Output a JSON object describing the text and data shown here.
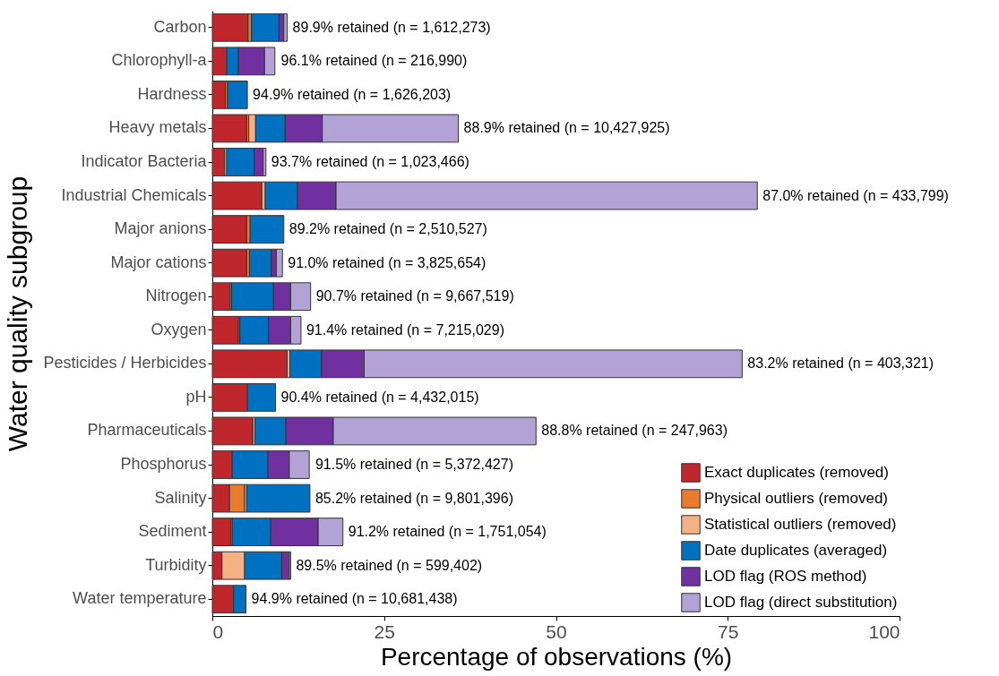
{
  "chart_data": {
    "type": "bar",
    "orientation": "horizontal",
    "stacked": true,
    "ylabel": "Water quality subgroup",
    "xlabel": "Percentage of observations (%)",
    "categories": [
      "Carbon",
      "Chlorophyll-a",
      "Hardness",
      "Heavy metals",
      "Indicator Bacteria",
      "Industrial Chemicals",
      "Major anions",
      "Major cations",
      "Nitrogen",
      "Oxygen",
      "Pesticides / Herbicides",
      "pH",
      "Pharmaceuticals",
      "Phosphorus",
      "Salinity",
      "Sediment",
      "Turbidity",
      "Water temperature"
    ],
    "series": [
      {
        "name": "Exact duplicates (removed)",
        "color": "#c0272d",
        "values": [
          5.2,
          2.1,
          1.9,
          5.0,
          1.8,
          7.2,
          5.0,
          5.0,
          2.6,
          3.8,
          10.9,
          5.1,
          5.9,
          2.9,
          2.5,
          2.7,
          1.4,
          3.1
        ]
      },
      {
        "name": "Physical outliers (removed)",
        "color": "#e97b2e",
        "values": [
          0.5,
          null,
          0.3,
          0.3,
          null,
          null,
          0.5,
          0.4,
          0.2,
          0.2,
          null,
          null,
          null,
          null,
          2.2,
          0.2,
          null,
          null
        ]
      },
      {
        "name": "Statistical outliers (removed)",
        "color": "#f4b183",
        "values": [
          null,
          null,
          null,
          1.0,
          0.3,
          0.5,
          null,
          null,
          null,
          null,
          0.4,
          null,
          0.3,
          null,
          0.3,
          null,
          3.3,
          null
        ]
      },
      {
        "name": "Date duplicates (averaged)",
        "color": "#0070c0",
        "values": [
          4.0,
          1.7,
          2.9,
          4.3,
          4.0,
          4.7,
          4.9,
          3.2,
          6.1,
          4.2,
          4.6,
          4.1,
          4.5,
          5.2,
          9.2,
          5.6,
          5.4,
          1.8
        ]
      },
      {
        "name": "LOD flag (ROS method)",
        "color": "#7030a0",
        "values": [
          0.7,
          3.8,
          null,
          5.4,
          1.3,
          5.6,
          null,
          0.7,
          2.5,
          3.2,
          6.2,
          null,
          6.9,
          3.1,
          null,
          6.9,
          1.1,
          null
        ]
      },
      {
        "name": "LOD flag (direct substitution)",
        "color": "#b3a2d6",
        "values": [
          0.5,
          1.5,
          null,
          19.8,
          0.4,
          61.3,
          null,
          0.9,
          2.9,
          1.5,
          55.0,
          null,
          29.5,
          2.9,
          null,
          3.6,
          0.2,
          null
        ]
      }
    ],
    "xlim": [
      0,
      100
    ],
    "xticks": [
      0,
      25,
      50,
      75,
      100
    ],
    "grid": false,
    "legend": "bottom right",
    "annotations": [
      {
        "text": "89.9% retained (n = 1,612,273)",
        "x": 10.9,
        "y": "Carbon"
      },
      {
        "text": "96.1% retained (n = 216,990)",
        "x": 9.2,
        "y": "Chlorophyll-a"
      },
      {
        "text": "94.9% retained (n = 1,626,203)",
        "x": 5.1,
        "y": "Hardness"
      },
      {
        "text": "88.9% retained (n = 10,427,925)",
        "x": 35.8,
        "y": "Heavy metals"
      },
      {
        "text": "93.7% retained (n = 1,023,466)",
        "x": 7.8,
        "y": "Indicator Bacteria"
      },
      {
        "text": "87.0% retained (n = 433,799)",
        "x": 79.3,
        "y": "Industrial Chemicals"
      },
      {
        "text": "89.2% retained (n = 2,510,527)",
        "x": 10.4,
        "y": "Major anions"
      },
      {
        "text": "91.0% retained (n = 3,825,654)",
        "x": 10.2,
        "y": "Major cations"
      },
      {
        "text": "90.7% retained (n = 9,667,519)",
        "x": 14.3,
        "y": "Nitrogen"
      },
      {
        "text": "91.4% retained (n = 7,215,029)",
        "x": 12.9,
        "y": "Oxygen"
      },
      {
        "text": "83.2% retained (n = 403,321)",
        "x": 77.1,
        "y": "Pesticides / Herbicides"
      },
      {
        "text": "90.4% retained (n = 4,432,015)",
        "x": 9.2,
        "y": "pH"
      },
      {
        "text": "88.8% retained (n = 247,963)",
        "x": 47.1,
        "y": "Pharmaceuticals"
      },
      {
        "text": "91.5% retained (n = 5,372,427)",
        "x": 14.2,
        "y": "Phosphorus"
      },
      {
        "text": "85.2% retained (n = 9,801,396)",
        "x": 14.2,
        "y": "Salinity"
      },
      {
        "text": "91.2% retained (n = 1,751,054)",
        "x": 19.0,
        "y": "Sediment"
      },
      {
        "text": "89.5% retained (n = 599,402)",
        "x": 11.4,
        "y": "Turbidity"
      },
      {
        "text": "94.9% retained (n = 10,681,438)",
        "x": 4.9,
        "y": "Water temperature"
      }
    ]
  }
}
